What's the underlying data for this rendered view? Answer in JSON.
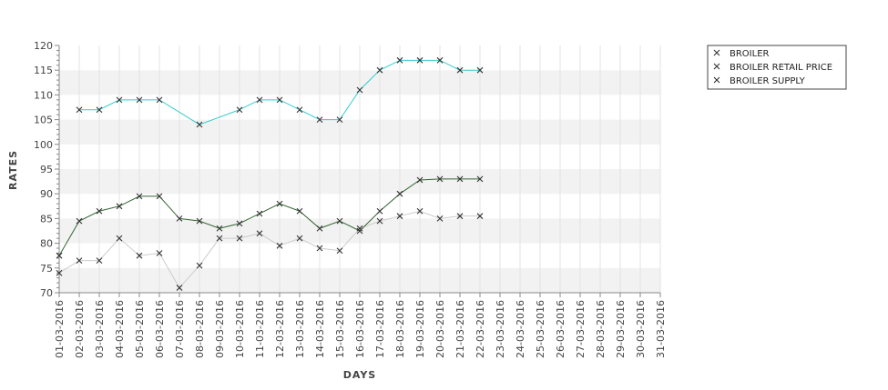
{
  "chart_data": {
    "type": "line",
    "title": "",
    "xlabel": "DAYS",
    "ylabel": "RATES",
    "ylim": [
      70,
      120
    ],
    "yticks": [
      70,
      75,
      80,
      85,
      90,
      95,
      100,
      105,
      110,
      115,
      120
    ],
    "grid": true,
    "legend_position": "top-right",
    "categories": [
      "01-03-2016",
      "02-03-2016",
      "03-03-2016",
      "04-03-2016",
      "05-03-2016",
      "06-03-2016",
      "07-03-2016",
      "08-03-2016",
      "09-03-2016",
      "10-03-2016",
      "11-03-2016",
      "12-03-2016",
      "13-03-2016",
      "14-03-2016",
      "15-03-2016",
      "16-03-2016",
      "17-03-2016",
      "18-03-2016",
      "19-03-2016",
      "20-03-2016",
      "21-03-2016",
      "22-03-2016",
      "23-03-2016",
      "24-03-2016",
      "25-03-2016",
      "26-03-2016",
      "27-03-2016",
      "28-03-2016",
      "29-03-2016",
      "30-03-2016",
      "31-03-2016"
    ],
    "series": [
      {
        "name": "BROILER",
        "color": "#cccccc",
        "values": [
          74,
          76.5,
          76.5,
          81,
          77.5,
          78,
          71,
          75.5,
          81,
          81,
          82,
          79.5,
          81,
          79,
          78.5,
          83,
          84.5,
          85.5,
          86.5,
          85,
          85.5,
          85.5,
          null,
          null,
          null,
          null,
          null,
          null,
          null,
          null,
          null
        ]
      },
      {
        "name": "BROILER RETAIL PRICE",
        "color": "#33cccc",
        "values": [
          null,
          107,
          107,
          109,
          109,
          109,
          null,
          104,
          null,
          107,
          109,
          109,
          107,
          105,
          105,
          111,
          115,
          117,
          117,
          117,
          115,
          115,
          null,
          null,
          null,
          null,
          null,
          null,
          null,
          null,
          null
        ]
      },
      {
        "name": "BROILER SUPPLY",
        "color": "#336633",
        "values": [
          77.5,
          84.5,
          86.5,
          87.5,
          89.5,
          89.5,
          85,
          84.5,
          83,
          84,
          86,
          88,
          86.5,
          83,
          84.5,
          82.5,
          86.5,
          90,
          92.8,
          93,
          93,
          93,
          null,
          null,
          null,
          null,
          null,
          null,
          null,
          null,
          null
        ]
      }
    ]
  }
}
